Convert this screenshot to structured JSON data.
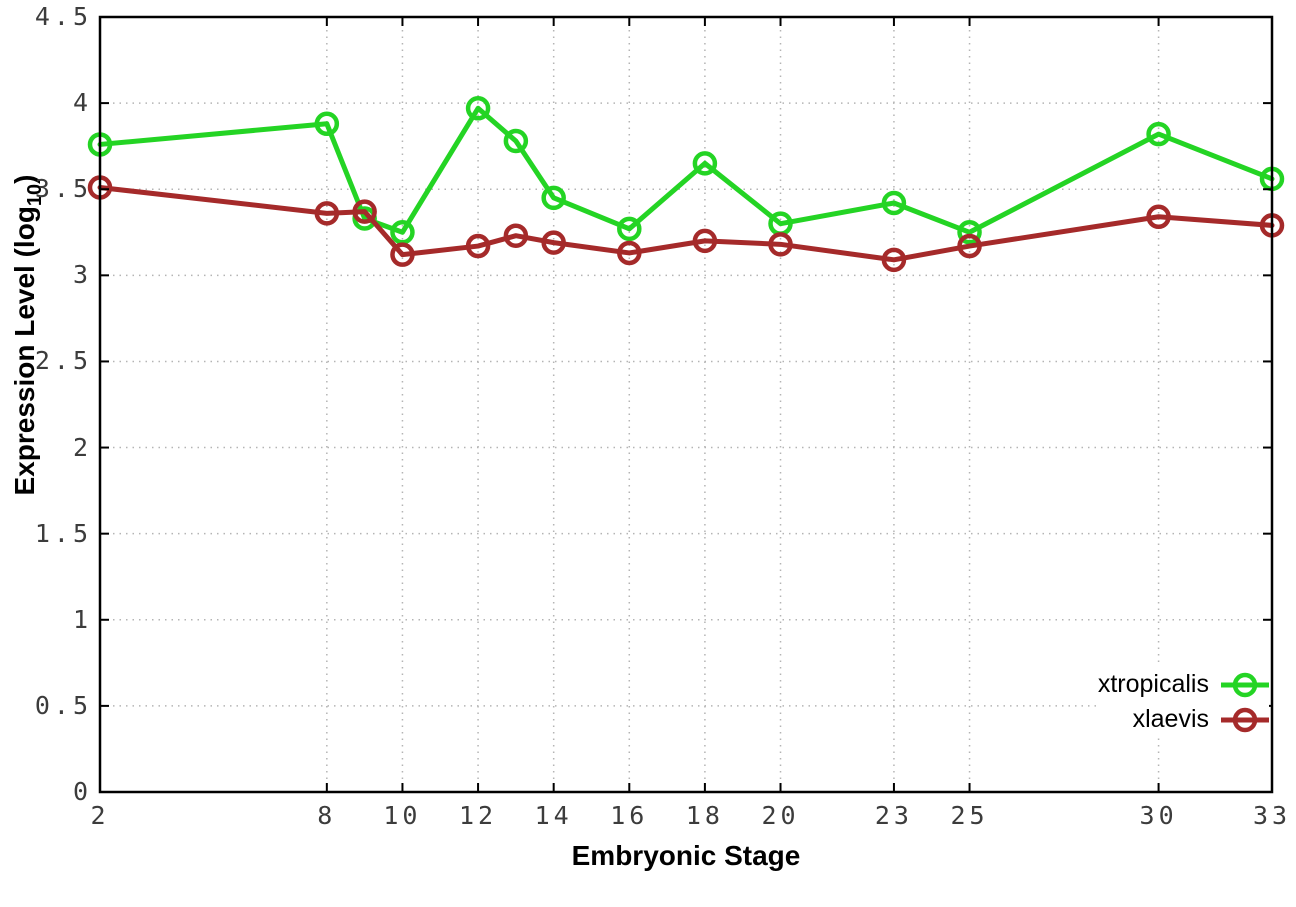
{
  "chart_data": {
    "type": "line",
    "title": "",
    "xlabel": "Embryonic Stage",
    "ylabel": "Expression Level (log10)",
    "ylabel_parts": {
      "base": "Expression Level (log",
      "sub": "10",
      "close": ")"
    },
    "x": [
      2,
      8,
      9,
      10,
      12,
      13,
      14,
      16,
      18,
      20,
      23,
      25,
      30,
      33
    ],
    "series": [
      {
        "name": "xtropicalis",
        "color": "#24d424",
        "values": [
          3.76,
          3.88,
          3.33,
          3.25,
          3.97,
          3.78,
          3.45,
          3.27,
          3.65,
          3.3,
          3.42,
          3.25,
          3.82,
          3.56
        ]
      },
      {
        "name": "xlaevis",
        "color": "#a52a2a",
        "values": [
          3.51,
          3.36,
          3.37,
          3.12,
          3.17,
          3.23,
          3.19,
          3.13,
          3.2,
          3.18,
          3.09,
          3.17,
          3.34,
          3.29
        ]
      }
    ],
    "x_ticks": [
      2,
      8,
      10,
      12,
      14,
      16,
      18,
      20,
      23,
      25,
      30,
      33
    ],
    "y_ticks": [
      0,
      0.5,
      1,
      1.5,
      2,
      2.5,
      3,
      3.5,
      4,
      4.5
    ],
    "xlim": [
      2,
      33
    ],
    "ylim": [
      0,
      4.5
    ],
    "grid": true,
    "legend_position": "bottom-right",
    "marker": "open-circle",
    "line_width": 5,
    "colors": {
      "border": "#000000",
      "grid": "#b4b4b4",
      "tick_text": "#3c3c3c",
      "background": "#ffffff"
    }
  }
}
